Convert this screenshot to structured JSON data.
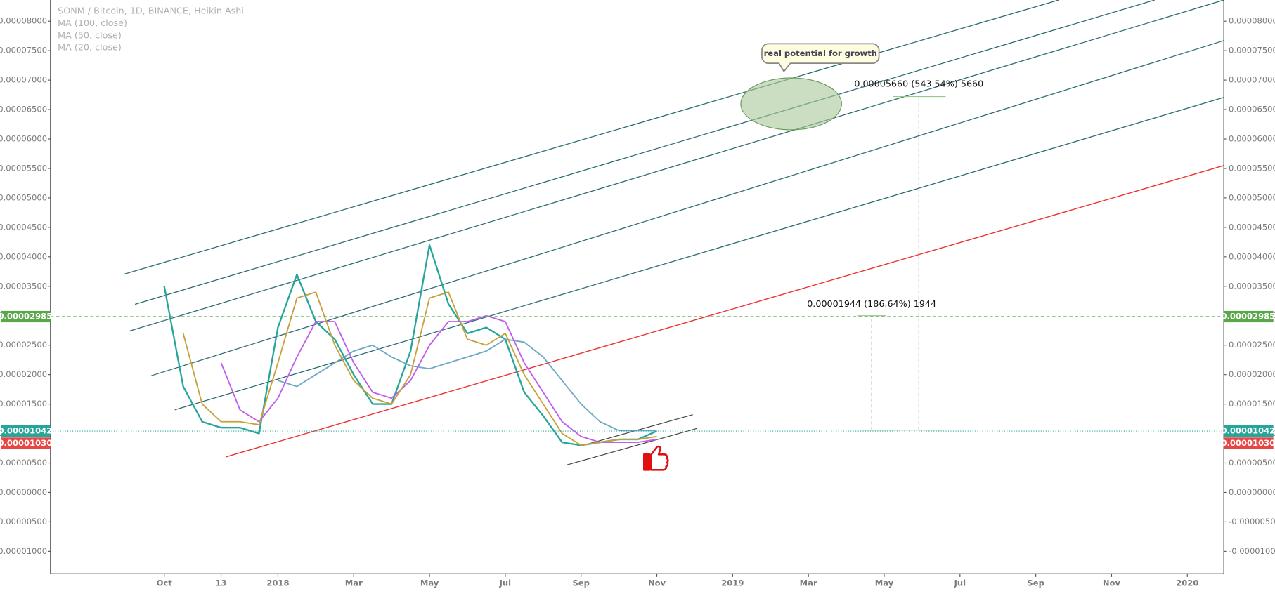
{
  "chart_data": {
    "type": "line",
    "title": "SONM / Bitcoin, 1D, BINANCE, Heikin Ashi",
    "categories": [
      null,
      null,
      null,
      null,
      "Oct",
      null,
      null,
      "13",
      null,
      null,
      "2018",
      null,
      null,
      null,
      "Mar",
      null,
      null,
      null,
      "May",
      null,
      null,
      null,
      "Jul",
      null,
      null,
      null,
      "Sep",
      null,
      null,
      null,
      "Nov",
      null,
      null,
      null,
      "2019",
      null,
      null,
      null,
      "Mar",
      null,
      null,
      null,
      "May",
      null,
      null,
      null,
      "Jul",
      null,
      null,
      null,
      "Sep",
      null,
      null,
      null,
      "Nov",
      null,
      null,
      null,
      "2020",
      null
    ],
    "series": [
      {
        "color": "#26a69a",
        "values": [
          null,
          null,
          null,
          null,
          3.5e-05,
          1.8e-05,
          1.2e-05,
          1.1e-05,
          1.1e-05,
          1e-05,
          2.8e-05,
          3.7e-05,
          2.9e-05,
          2.6e-05,
          2e-05,
          1.5e-05,
          1.5e-05,
          2.4e-05,
          4.2e-05,
          3.2e-05,
          2.7e-05,
          2.8e-05,
          2.6e-05,
          1.7e-05,
          1.3e-05,
          8.5e-06,
          8e-06,
          8.5e-06,
          9e-06,
          9e-06,
          1.042e-05,
          null,
          null,
          null,
          null,
          null,
          null,
          null,
          null,
          null,
          null,
          null,
          null,
          null,
          null,
          null,
          null,
          null,
          null,
          null,
          null,
          null,
          null,
          null,
          null,
          null,
          null,
          null,
          null,
          null
        ]
      },
      {
        "name": "MA (100, close)",
        "color": "#6fa8c8",
        "values": [
          null,
          null,
          null,
          null,
          null,
          null,
          null,
          null,
          null,
          null,
          1.9e-05,
          1.8e-05,
          2e-05,
          2.2e-05,
          2.4e-05,
          2.5e-05,
          2.3e-05,
          2.15e-05,
          2.1e-05,
          2.2e-05,
          2.3e-05,
          2.4e-05,
          2.6e-05,
          2.55e-05,
          2.3e-05,
          1.9e-05,
          1.5e-05,
          1.2e-05,
          1.05e-05,
          1.05e-05,
          1.05e-05,
          null,
          null,
          null,
          null,
          null,
          null,
          null,
          null,
          null,
          null,
          null,
          null,
          null,
          null,
          null,
          null,
          null,
          null,
          null,
          null,
          null,
          null,
          null,
          null,
          null,
          null,
          null,
          null,
          null
        ]
      },
      {
        "name": "MA (50, close)",
        "color": "#c05cf0",
        "values": [
          null,
          null,
          null,
          null,
          null,
          null,
          null,
          2.2e-05,
          1.4e-05,
          1.2e-05,
          1.6e-05,
          2.3e-05,
          2.9e-05,
          2.9e-05,
          2.2e-05,
          1.7e-05,
          1.6e-05,
          1.9e-05,
          2.5e-05,
          2.9e-05,
          2.9e-05,
          3e-05,
          2.9e-05,
          2.2e-05,
          1.7e-05,
          1.2e-05,
          9.5e-06,
          8.5e-06,
          8.5e-06,
          8.5e-06,
          9e-06,
          null,
          null,
          null,
          null,
          null,
          null,
          null,
          null,
          null,
          null,
          null,
          null,
          null,
          null,
          null,
          null,
          null,
          null,
          null,
          null,
          null,
          null,
          null,
          null,
          null,
          null,
          null,
          null,
          null
        ]
      },
      {
        "name": "MA (20, close)",
        "color": "#c9a13b",
        "values": [
          null,
          null,
          null,
          null,
          null,
          2.7e-05,
          1.5e-05,
          1.2e-05,
          1.2e-05,
          1.15e-05,
          2.2e-05,
          3.3e-05,
          3.4e-05,
          2.5e-05,
          1.9e-05,
          1.6e-05,
          1.5e-05,
          2e-05,
          3.3e-05,
          3.4e-05,
          2.6e-05,
          2.5e-05,
          2.7e-05,
          2e-05,
          1.5e-05,
          1e-05,
          8e-06,
          8.5e-06,
          9e-06,
          9e-06,
          9.5e-06,
          null,
          null,
          null,
          null,
          null,
          null,
          null,
          null,
          null,
          null,
          null,
          null,
          null,
          null,
          null,
          null,
          null,
          null,
          null,
          null,
          null,
          null,
          null,
          null,
          null,
          null,
          null,
          null,
          null
        ]
      }
    ],
    "ylim": [
      -1.38e-05,
      8.36e-05
    ],
    "yticks": [
      {
        "value": -1e-05,
        "label": "-0.00001000"
      },
      {
        "value": -5e-06,
        "label": "-0.00000500"
      },
      {
        "value": 0,
        "label": "0.00000000"
      },
      {
        "value": 5e-06,
        "label": "0.00000500"
      },
      {
        "value": 1e-05,
        "label": "0.00001000"
      },
      {
        "value": 1.5e-05,
        "label": "0.00001500"
      },
      {
        "value": 2e-05,
        "label": "0.00002000"
      },
      {
        "value": 2.5e-05,
        "label": "0.00002500"
      },
      {
        "value": 3e-05,
        "label": "0.00003000"
      },
      {
        "value": 3.5e-05,
        "label": "0.00003500"
      },
      {
        "value": 4e-05,
        "label": "0.00004000"
      },
      {
        "value": 4.5e-05,
        "label": "0.00004500"
      },
      {
        "value": 5e-05,
        "label": "0.00005000"
      },
      {
        "value": 5.5e-05,
        "label": "0.00005500"
      },
      {
        "value": 6e-05,
        "label": "0.00006000"
      },
      {
        "value": 6.5e-05,
        "label": "0.00006500"
      },
      {
        "value": 7e-05,
        "label": "0.00007000"
      },
      {
        "value": 7.5e-05,
        "label": "0.00007500"
      },
      {
        "value": 8e-05,
        "label": "0.00008000"
      }
    ],
    "grid": false,
    "price_lines": [
      {
        "value": 2.985e-05,
        "label": "0.00002985",
        "color": "#5aa74a",
        "dash": "dashed"
      },
      {
        "value": 1.042e-05,
        "label": "0.00001042",
        "color": "#26a69a",
        "dash": "dotted"
      },
      {
        "value": 1.03e-05,
        "label": "0.00001030",
        "color": "#e84545",
        "dash": "none"
      }
    ],
    "annotations": [
      "real potential for growth",
      "0.00005660 (543.54%) 5660",
      "0.00001944 (186.64%) 1944"
    ]
  }
}
